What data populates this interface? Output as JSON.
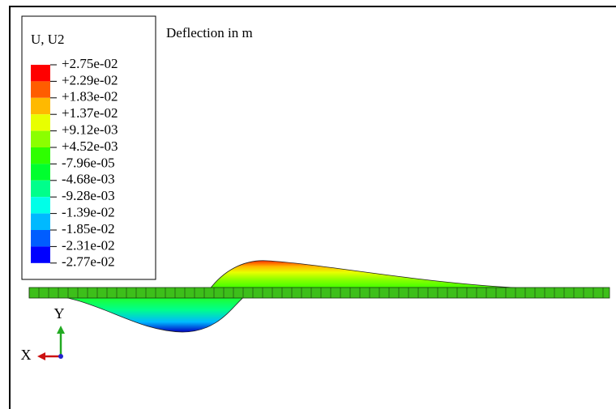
{
  "legend": {
    "title": "U, U2",
    "labels": [
      "+2.75e-02",
      "+2.29e-02",
      "+1.83e-02",
      "+1.37e-02",
      "+9.12e-03",
      "+4.52e-03",
      "-7.96e-05",
      "-4.68e-03",
      "-9.28e-03",
      "-1.39e-02",
      "-1.85e-02",
      "-2.31e-02",
      "-2.77e-02"
    ],
    "colors": [
      "#ff0000",
      "#ff5d00",
      "#ffb900",
      "#e8ff00",
      "#8bff00",
      "#2eff00",
      "#00ff2e",
      "#00ff8b",
      "#00ffe8",
      "#00b9ff",
      "#005dff",
      "#0000ff"
    ]
  },
  "annotation": "Deflection in m",
  "triad": {
    "x_label": "X",
    "y_label": "Y"
  }
}
